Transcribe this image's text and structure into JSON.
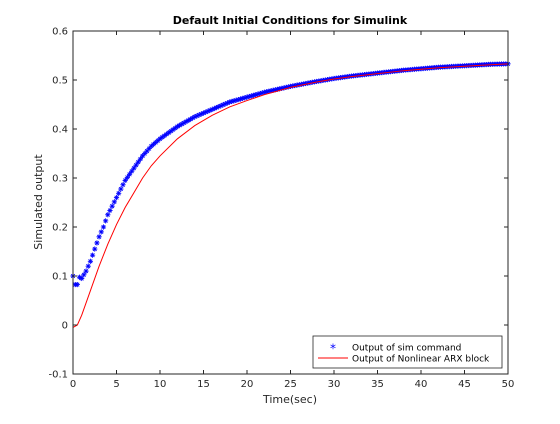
{
  "chart_data": {
    "type": "line",
    "title": "Default Initial Conditions for Simulink",
    "xlabel": "Time(sec)",
    "ylabel": "Simulated output",
    "xlim": [
      0,
      50
    ],
    "ylim": [
      -0.1,
      0.6
    ],
    "xticks": [
      0,
      5,
      10,
      15,
      20,
      25,
      30,
      35,
      40,
      45,
      50
    ],
    "yticks": [
      -0.1,
      0,
      0.1,
      0.2,
      0.3,
      0.4,
      0.5,
      0.6
    ],
    "x_tick_labels": [
      "0",
      "5",
      "10",
      "15",
      "20",
      "25",
      "30",
      "35",
      "40",
      "45",
      "50"
    ],
    "y_tick_labels": [
      "-0.1",
      "0",
      "0.1",
      "0.2",
      "0.3",
      "0.4",
      "0.5",
      "0.6"
    ],
    "grid": false,
    "legend": {
      "placement": "bottom-right"
    },
    "series": [
      {
        "name": "Output of sim command",
        "style": "markers-star",
        "color": "#0000ff",
        "x": [
          0.0,
          0.2,
          0.4,
          0.6,
          0.8,
          1.0,
          1.5,
          2.0,
          2.5,
          3.0,
          3.5,
          4.0,
          5.0,
          6.0,
          7.0,
          8.0,
          9.0,
          10.0,
          12.0,
          14.0,
          16.0,
          18.0,
          20.0,
          22.0,
          25.0,
          28.0,
          30.0,
          32.0,
          35.0,
          38.0,
          40.0,
          42.0,
          45.0,
          48.0,
          50.0
        ],
        "y": [
          0.1,
          0.085,
          0.075,
          0.09,
          0.1,
          0.095,
          0.11,
          0.13,
          0.155,
          0.18,
          0.2,
          0.225,
          0.26,
          0.295,
          0.32,
          0.345,
          0.365,
          0.38,
          0.405,
          0.425,
          0.44,
          0.455,
          0.465,
          0.475,
          0.487,
          0.497,
          0.503,
          0.508,
          0.514,
          0.52,
          0.523,
          0.526,
          0.529,
          0.532,
          0.533
        ]
      },
      {
        "name": "Output of Nonlinear ARX block",
        "style": "line",
        "color": "#ff0000",
        "x": [
          0.0,
          0.5,
          1.0,
          1.5,
          2.0,
          3.0,
          4.0,
          5.0,
          6.0,
          7.0,
          8.0,
          9.0,
          10.0,
          12.0,
          14.0,
          16.0,
          18.0,
          20.0,
          22.0,
          25.0,
          28.0,
          30.0,
          32.0,
          35.0,
          38.0,
          40.0,
          42.0,
          45.0,
          48.0,
          50.0
        ],
        "y": [
          -0.005,
          0.0,
          0.02,
          0.045,
          0.07,
          0.12,
          0.165,
          0.205,
          0.24,
          0.27,
          0.3,
          0.325,
          0.345,
          0.38,
          0.407,
          0.428,
          0.445,
          0.458,
          0.47,
          0.485,
          0.496,
          0.502,
          0.507,
          0.513,
          0.519,
          0.522,
          0.525,
          0.528,
          0.531,
          0.533
        ]
      }
    ]
  }
}
